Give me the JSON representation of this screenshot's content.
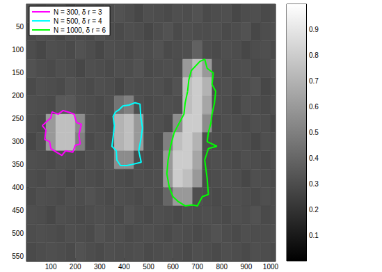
{
  "chart_data": {
    "type": "contour",
    "xlim": [
      0,
      1020
    ],
    "ylim": [
      560,
      0
    ],
    "xticks": [
      100,
      200,
      300,
      400,
      500,
      600,
      700,
      800,
      900,
      1000
    ],
    "yticks": [
      50,
      100,
      150,
      200,
      250,
      300,
      350,
      400,
      450,
      500,
      550
    ],
    "legend": "upper left",
    "series": [
      {
        "name": "N = 300, δ r = 3",
        "color": "#ff00ff",
        "x": [
          85,
          100,
          105,
          130,
          150,
          175,
          195,
          205,
          225,
          215,
          220,
          200,
          190,
          160,
          145,
          120,
          100,
          95,
          75,
          80,
          65,
          85
        ],
        "y": [
          255,
          248,
          235,
          240,
          232,
          236,
          240,
          258,
          262,
          285,
          305,
          308,
          323,
          320,
          330,
          322,
          315,
          300,
          295,
          275,
          265,
          255
        ]
      },
      {
        "name": "N = 500, δ r = 4",
        "color": "#00ffff",
        "x": [
          365,
          380,
          395,
          420,
          445,
          465,
          468,
          475,
          470,
          460,
          470,
          430,
          410,
          385,
          370,
          368,
          350,
          355,
          360,
          355,
          365
        ],
        "y": [
          235,
          230,
          222,
          220,
          215,
          218,
          245,
          270,
          290,
          320,
          345,
          350,
          352,
          352,
          340,
          320,
          310,
          290,
          265,
          245,
          235
        ]
      },
      {
        "name": "N = 1000, δ r = 6",
        "color": "#00ff00",
        "x": [
          660,
          665,
          675,
          710,
          730,
          740,
          765,
          760,
          775,
          770,
          760,
          755,
          745,
          740,
          780,
          745,
          730,
          740,
          745,
          720,
          700,
          680,
          650,
          620,
          600,
          585,
          575,
          580,
          590,
          605,
          625,
          645,
          650,
          660
        ],
        "y": [
          190,
          165,
          145,
          125,
          120,
          140,
          150,
          175,
          190,
          215,
          240,
          260,
          280,
          300,
          310,
          315,
          340,
          380,
          415,
          420,
          440,
          438,
          440,
          430,
          420,
          400,
          370,
          340,
          310,
          280,
          260,
          240,
          215,
          190
        ]
      }
    ],
    "image": {
      "x": [
        20,
        60,
        100,
        140,
        180,
        220,
        260,
        300,
        340,
        380,
        420,
        460,
        500,
        540,
        580,
        620,
        660,
        700,
        740,
        780,
        820,
        860,
        900,
        940,
        980,
        1020
      ],
      "y": [
        20,
        60,
        100,
        140,
        180,
        220,
        260,
        300,
        340,
        380,
        420,
        460,
        500,
        540
      ],
      "values": [
        [
          0.31,
          0.29,
          0.3,
          0.32,
          0.28,
          0.3,
          0.31,
          0.29,
          0.3,
          0.32,
          0.3,
          0.28,
          0.31,
          0.3,
          0.29,
          0.31,
          0.3,
          0.32,
          0.29,
          0.3,
          0.31,
          0.28,
          0.3,
          0.31,
          0.29,
          0.3
        ],
        [
          0.29,
          0.31,
          0.3,
          0.28,
          0.31,
          0.3,
          0.29,
          0.32,
          0.3,
          0.29,
          0.31,
          0.3,
          0.28,
          0.3,
          0.32,
          0.29,
          0.31,
          0.3,
          0.3,
          0.31,
          0.29,
          0.3,
          0.32,
          0.28,
          0.3,
          0.31
        ],
        [
          0.3,
          0.28,
          0.31,
          0.3,
          0.29,
          0.32,
          0.3,
          0.28,
          0.31,
          0.3,
          0.29,
          0.31,
          0.3,
          0.32,
          0.29,
          0.3,
          0.31,
          0.38,
          0.3,
          0.29,
          0.31,
          0.3,
          0.28,
          0.3,
          0.31,
          0.29
        ],
        [
          0.32,
          0.3,
          0.29,
          0.31,
          0.3,
          0.28,
          0.31,
          0.3,
          0.29,
          0.31,
          0.3,
          0.32,
          0.29,
          0.3,
          0.31,
          0.3,
          0.6,
          0.75,
          0.6,
          0.31,
          0.29,
          0.3,
          0.31,
          0.29,
          0.3,
          0.32
        ],
        [
          0.29,
          0.31,
          0.3,
          0.29,
          0.32,
          0.3,
          0.29,
          0.31,
          0.3,
          0.28,
          0.31,
          0.3,
          0.3,
          0.31,
          0.29,
          0.32,
          0.75,
          0.8,
          0.7,
          0.3,
          0.31,
          0.29,
          0.3,
          0.32,
          0.28,
          0.3
        ],
        [
          0.31,
          0.3,
          0.29,
          0.35,
          0.35,
          0.31,
          0.3,
          0.29,
          0.31,
          0.45,
          0.5,
          0.31,
          0.29,
          0.3,
          0.31,
          0.3,
          0.75,
          0.8,
          0.65,
          0.31,
          0.3,
          0.28,
          0.31,
          0.3,
          0.29,
          0.31
        ],
        [
          0.3,
          0.29,
          0.6,
          0.75,
          0.75,
          0.55,
          0.31,
          0.3,
          0.29,
          0.7,
          0.75,
          0.6,
          0.3,
          0.31,
          0.29,
          0.55,
          0.8,
          0.8,
          0.55,
          0.29,
          0.31,
          0.3,
          0.29,
          0.31,
          0.3,
          0.28
        ],
        [
          0.28,
          0.31,
          0.6,
          0.75,
          0.75,
          0.5,
          0.29,
          0.31,
          0.3,
          0.7,
          0.75,
          0.6,
          0.31,
          0.29,
          0.5,
          0.75,
          0.8,
          0.7,
          0.31,
          0.3,
          0.29,
          0.31,
          0.3,
          0.28,
          0.31,
          0.3
        ],
        [
          0.31,
          0.3,
          0.29,
          0.31,
          0.3,
          0.29,
          0.31,
          0.3,
          0.32,
          0.55,
          0.55,
          0.3,
          0.29,
          0.3,
          0.6,
          0.8,
          0.8,
          0.65,
          0.3,
          0.31,
          0.3,
          0.29,
          0.31,
          0.3,
          0.29,
          0.31
        ],
        [
          0.3,
          0.29,
          0.31,
          0.3,
          0.28,
          0.31,
          0.3,
          0.29,
          0.31,
          0.3,
          0.29,
          0.31,
          0.3,
          0.31,
          0.6,
          0.8,
          0.75,
          0.6,
          0.29,
          0.3,
          0.31,
          0.3,
          0.28,
          0.31,
          0.3,
          0.29
        ],
        [
          0.29,
          0.31,
          0.3,
          0.29,
          0.31,
          0.3,
          0.32,
          0.3,
          0.29,
          0.31,
          0.3,
          0.29,
          0.31,
          0.3,
          0.4,
          0.6,
          0.6,
          0.31,
          0.3,
          0.29,
          0.3,
          0.31,
          0.3,
          0.29,
          0.31,
          0.3
        ],
        [
          0.31,
          0.3,
          0.28,
          0.31,
          0.3,
          0.29,
          0.3,
          0.31,
          0.3,
          0.29,
          0.32,
          0.3,
          0.29,
          0.31,
          0.3,
          0.29,
          0.31,
          0.3,
          0.31,
          0.3,
          0.29,
          0.31,
          0.3,
          0.32,
          0.29,
          0.3
        ],
        [
          0.3,
          0.31,
          0.3,
          0.29,
          0.31,
          0.3,
          0.29,
          0.32,
          0.3,
          0.31,
          0.29,
          0.3,
          0.31,
          0.3,
          0.29,
          0.31,
          0.3,
          0.29,
          0.3,
          0.32,
          0.3,
          0.29,
          0.31,
          0.3,
          0.3,
          0.31
        ],
        [
          0.29,
          0.3,
          0.31,
          0.3,
          0.29,
          0.32,
          0.3,
          0.29,
          0.31,
          0.3,
          0.3,
          0.31,
          0.29,
          0.3,
          0.31,
          0.3,
          0.29,
          0.31,
          0.3,
          0.29,
          0.31,
          0.3,
          0.29,
          0.31,
          0.3,
          0.29
        ]
      ]
    },
    "colorbar": {
      "lim": [
        0,
        1
      ],
      "ticks": [
        0.1,
        0.2,
        0.3,
        0.4,
        0.5,
        0.6,
        0.7,
        0.8,
        0.9
      ]
    }
  }
}
